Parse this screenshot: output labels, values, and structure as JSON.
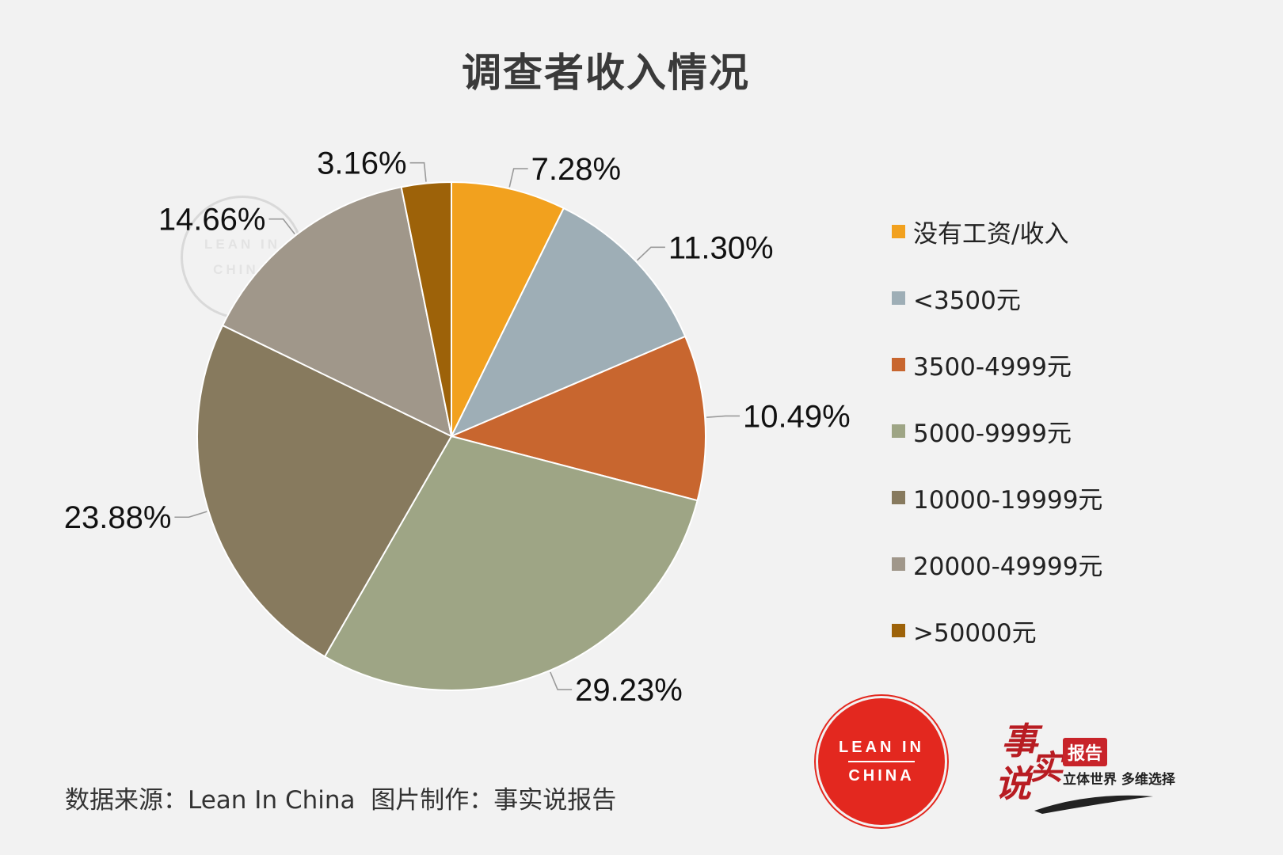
{
  "chart_data": {
    "type": "pie",
    "title": "调查者收入情况",
    "slices": [
      {
        "label": "没有工资/收入",
        "value": 7.28,
        "display": "7.28%",
        "color": "#f2a11e"
      },
      {
        "label": "<3500元",
        "value": 11.3,
        "display": "11.30%",
        "color": "#9eaeb6"
      },
      {
        "label": "3500-4999元",
        "value": 10.49,
        "display": "10.49%",
        "color": "#c8662f"
      },
      {
        "label": "5000-9999元",
        "value": 29.23,
        "display": "29.23%",
        "color": "#9ea585"
      },
      {
        "label": "10000-19999元",
        "value": 23.88,
        "display": "23.88%",
        "color": "#877a5e"
      },
      {
        "label": "20000-49999元",
        "value": 14.66,
        "display": "14.66%",
        "color": "#a0978a"
      },
      {
        "label": ">50000元",
        "value": 3.16,
        "display": "3.16%",
        "color": "#9d6209"
      }
    ],
    "legend_position": "right"
  },
  "footer": {
    "source": "数据来源：Lean In China  图片制作：事实说报告"
  },
  "logos": {
    "lean_in": {
      "line1": "LEAN IN",
      "line2": "CHINA"
    },
    "report": {
      "calligraphy_1": "事",
      "calligraphy_2": "说",
      "calligraphy_3": "实",
      "badge": "报告",
      "slogan": "立体世界 多维选择"
    }
  }
}
